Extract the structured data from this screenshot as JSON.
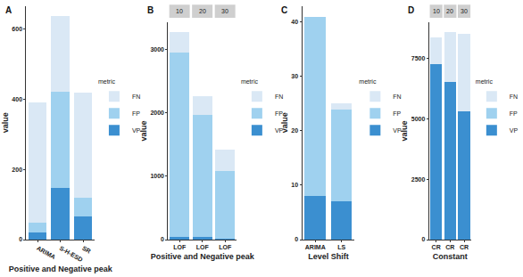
{
  "chart_data": [
    {
      "type": "bar",
      "title": "A",
      "x_label": "Positive and Negative peak",
      "y_label": "value",
      "categories": [
        "ARIMA",
        "S-H-ESD",
        "SR"
      ],
      "stacked": true,
      "legend": "right",
      "legend_title": "metric",
      "ylim": [
        0,
        665
      ],
      "yticks": [
        0,
        200,
        400,
        600
      ],
      "series": [
        {
          "name": "VP",
          "color": "#3b8fd0",
          "values": [
            20,
            148,
            65
          ]
        },
        {
          "name": "FP",
          "color": "#9fd1ef",
          "values": [
            28,
            274,
            55
          ]
        },
        {
          "name": "FN",
          "color": "#dae8f5",
          "values": [
            342,
            213,
            298
          ]
        }
      ]
    },
    {
      "type": "bar",
      "title": "B",
      "x_label": "Positive and Negative peak",
      "y_label": "value",
      "categories": [
        "LOF",
        "LOF",
        "LOF"
      ],
      "facets": [
        "10",
        "20",
        "30"
      ],
      "stacked": true,
      "legend": "right",
      "legend_title": "metric",
      "ylim": [
        0,
        3420
      ],
      "yticks": [
        0,
        1000,
        2000,
        3000
      ],
      "series": [
        {
          "name": "VP",
          "color": "#3b8fd0",
          "values": [
            40,
            40,
            20
          ]
        },
        {
          "name": "FP",
          "color": "#9fd1ef",
          "values": [
            2910,
            1920,
            1060
          ]
        },
        {
          "name": "FN",
          "color": "#dae8f5",
          "values": [
            320,
            300,
            330
          ]
        }
      ]
    },
    {
      "type": "bar",
      "title": "C",
      "x_label": "Level Shift",
      "y_label": "value",
      "categories": [
        "ARIMA",
        "LS"
      ],
      "stacked": true,
      "legend": "right",
      "legend_title": "metric",
      "ylim": [
        0,
        43
      ],
      "yticks": [
        0,
        10,
        20,
        30,
        40
      ],
      "series": [
        {
          "name": "VP",
          "color": "#3b8fd0",
          "values": [
            8,
            7
          ]
        },
        {
          "name": "FP",
          "color": "#9fd1ef",
          "values": [
            33,
            17
          ]
        },
        {
          "name": "FN",
          "color": "#dae8f5",
          "values": [
            0,
            1
          ]
        }
      ]
    },
    {
      "type": "bar",
      "title": "D",
      "x_label": "Constant",
      "y_label": "value",
      "categories": [
        "CR",
        "CR",
        "CR"
      ],
      "facets": [
        "10",
        "20",
        "30"
      ],
      "stacked": true,
      "legend": "right",
      "legend_title": "metric",
      "ylim": [
        0,
        9000
      ],
      "yticks": [
        0,
        2500,
        5000,
        7500
      ],
      "series": [
        {
          "name": "VP",
          "color": "#3b8fd0",
          "values": [
            7280,
            6520,
            5300
          ]
        },
        {
          "name": "FP",
          "color": "#9fd1ef",
          "values": [
            0,
            0,
            0
          ]
        },
        {
          "name": "FN",
          "color": "#dae8f5",
          "values": [
            1100,
            2080,
            3230
          ]
        }
      ]
    }
  ]
}
